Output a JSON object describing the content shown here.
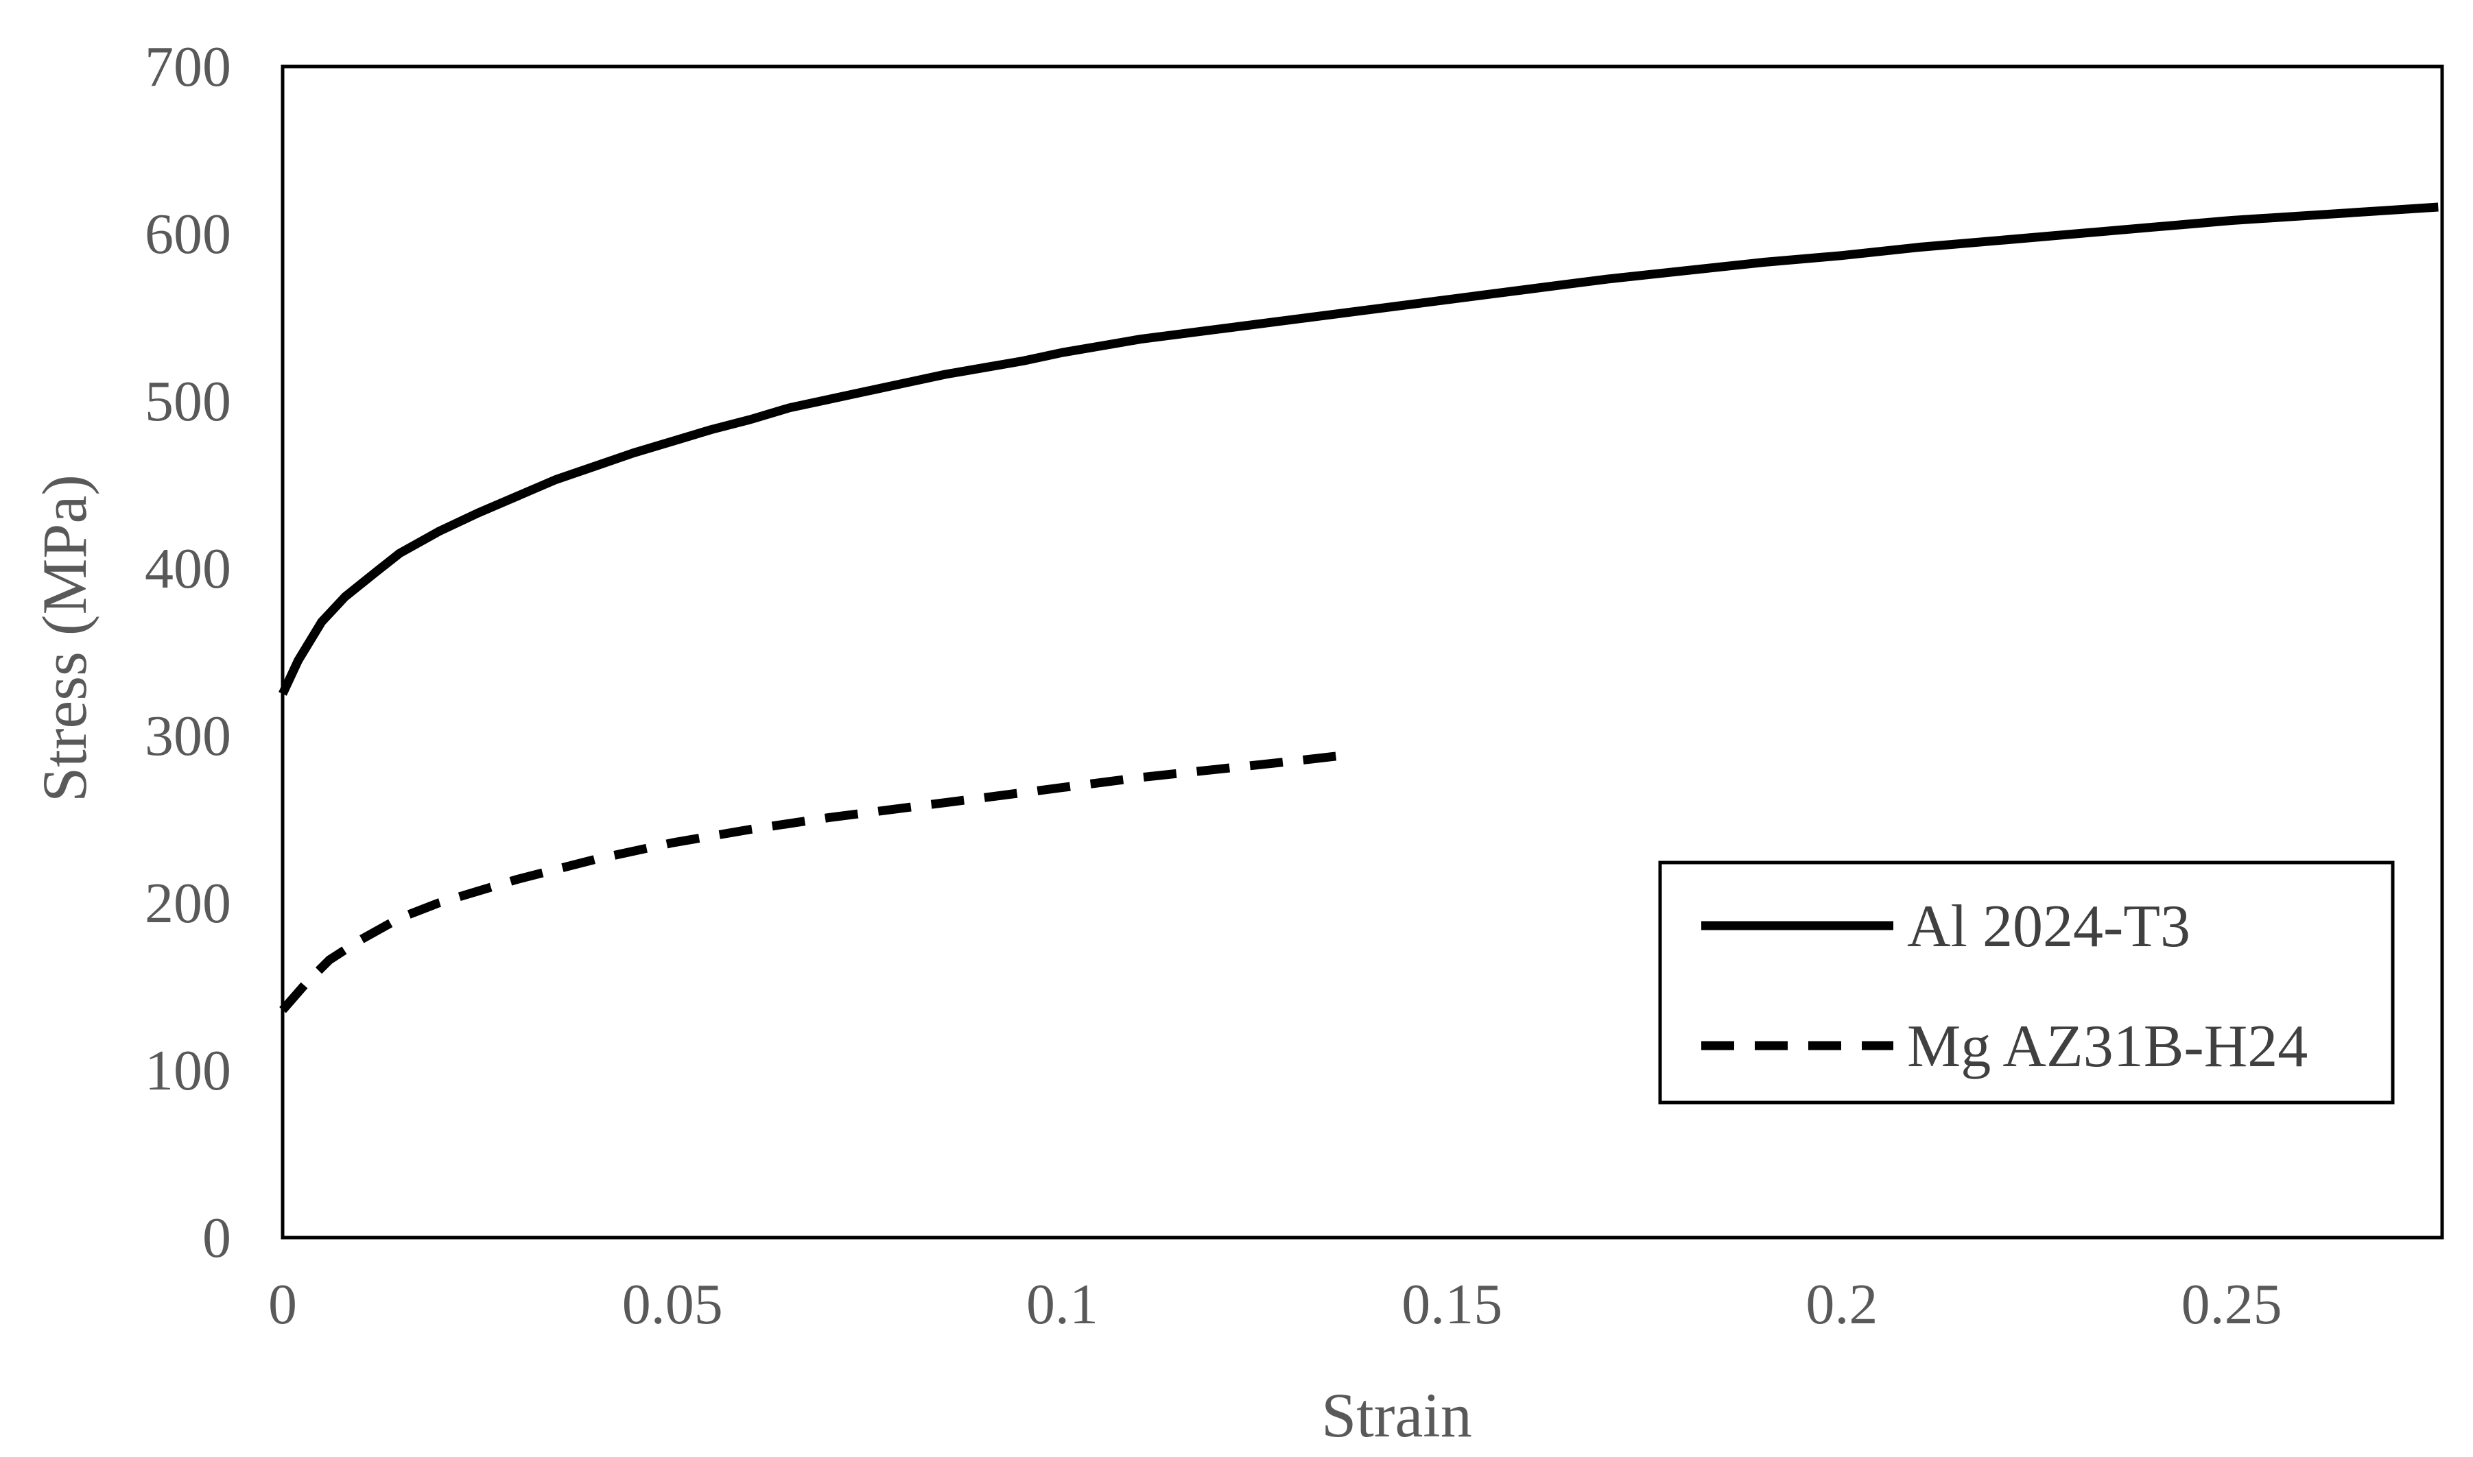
{
  "chart_data": {
    "type": "line",
    "title": "",
    "xlabel": "Strain",
    "ylabel": "Stress (MPa)",
    "xlim": [
      0,
      0.277
    ],
    "ylim": [
      0,
      700
    ],
    "x_ticks": [
      0,
      0.05,
      0.1,
      0.15,
      0.2,
      0.25
    ],
    "x_tick_labels": [
      "0",
      "0.05",
      "0.1",
      "0.15",
      "0.2",
      "0.25"
    ],
    "y_ticks": [
      0,
      100,
      200,
      300,
      400,
      500,
      600,
      700
    ],
    "y_tick_labels": [
      "0",
      "100",
      "200",
      "300",
      "400",
      "500",
      "600",
      "700"
    ],
    "grid": false,
    "legend_position": "lower-right",
    "series": [
      {
        "name": "Al 2024-T3",
        "style": "solid",
        "color": "#000000",
        "points": [
          [
            0,
            325
          ],
          [
            0.002,
            345
          ],
          [
            0.005,
            368
          ],
          [
            0.008,
            383
          ],
          [
            0.012,
            398
          ],
          [
            0.015,
            409
          ],
          [
            0.02,
            422
          ],
          [
            0.025,
            433
          ],
          [
            0.03,
            443
          ],
          [
            0.035,
            453
          ],
          [
            0.04,
            461
          ],
          [
            0.045,
            469
          ],
          [
            0.05,
            476
          ],
          [
            0.055,
            483
          ],
          [
            0.06,
            489
          ],
          [
            0.065,
            496
          ],
          [
            0.07,
            501
          ],
          [
            0.075,
            506
          ],
          [
            0.08,
            511
          ],
          [
            0.085,
            516
          ],
          [
            0.09,
            520
          ],
          [
            0.095,
            524
          ],
          [
            0.1,
            529
          ],
          [
            0.105,
            533
          ],
          [
            0.11,
            537
          ],
          [
            0.12,
            543
          ],
          [
            0.13,
            549
          ],
          [
            0.14,
            555
          ],
          [
            0.15,
            561
          ],
          [
            0.16,
            567
          ],
          [
            0.17,
            573
          ],
          [
            0.18,
            578
          ],
          [
            0.19,
            583
          ],
          [
            0.2,
            587
          ],
          [
            0.21,
            592
          ],
          [
            0.22,
            596
          ],
          [
            0.23,
            600
          ],
          [
            0.24,
            604
          ],
          [
            0.25,
            608
          ],
          [
            0.26,
            611
          ],
          [
            0.27,
            614
          ],
          [
            0.2765,
            616
          ]
        ]
      },
      {
        "name": "Mg AZ31B-H24",
        "style": "dashed",
        "color": "#000000",
        "points": [
          [
            0,
            136
          ],
          [
            0.003,
            152
          ],
          [
            0.006,
            166
          ],
          [
            0.01,
            178
          ],
          [
            0.015,
            191
          ],
          [
            0.02,
            200
          ],
          [
            0.025,
            207
          ],
          [
            0.03,
            214
          ],
          [
            0.035,
            220
          ],
          [
            0.04,
            226
          ],
          [
            0.05,
            236
          ],
          [
            0.06,
            244
          ],
          [
            0.07,
            251
          ],
          [
            0.08,
            257
          ],
          [
            0.09,
            263
          ],
          [
            0.1,
            269
          ],
          [
            0.11,
            275
          ],
          [
            0.12,
            280
          ],
          [
            0.13,
            285
          ],
          [
            0.1375,
            289
          ]
        ]
      }
    ]
  }
}
